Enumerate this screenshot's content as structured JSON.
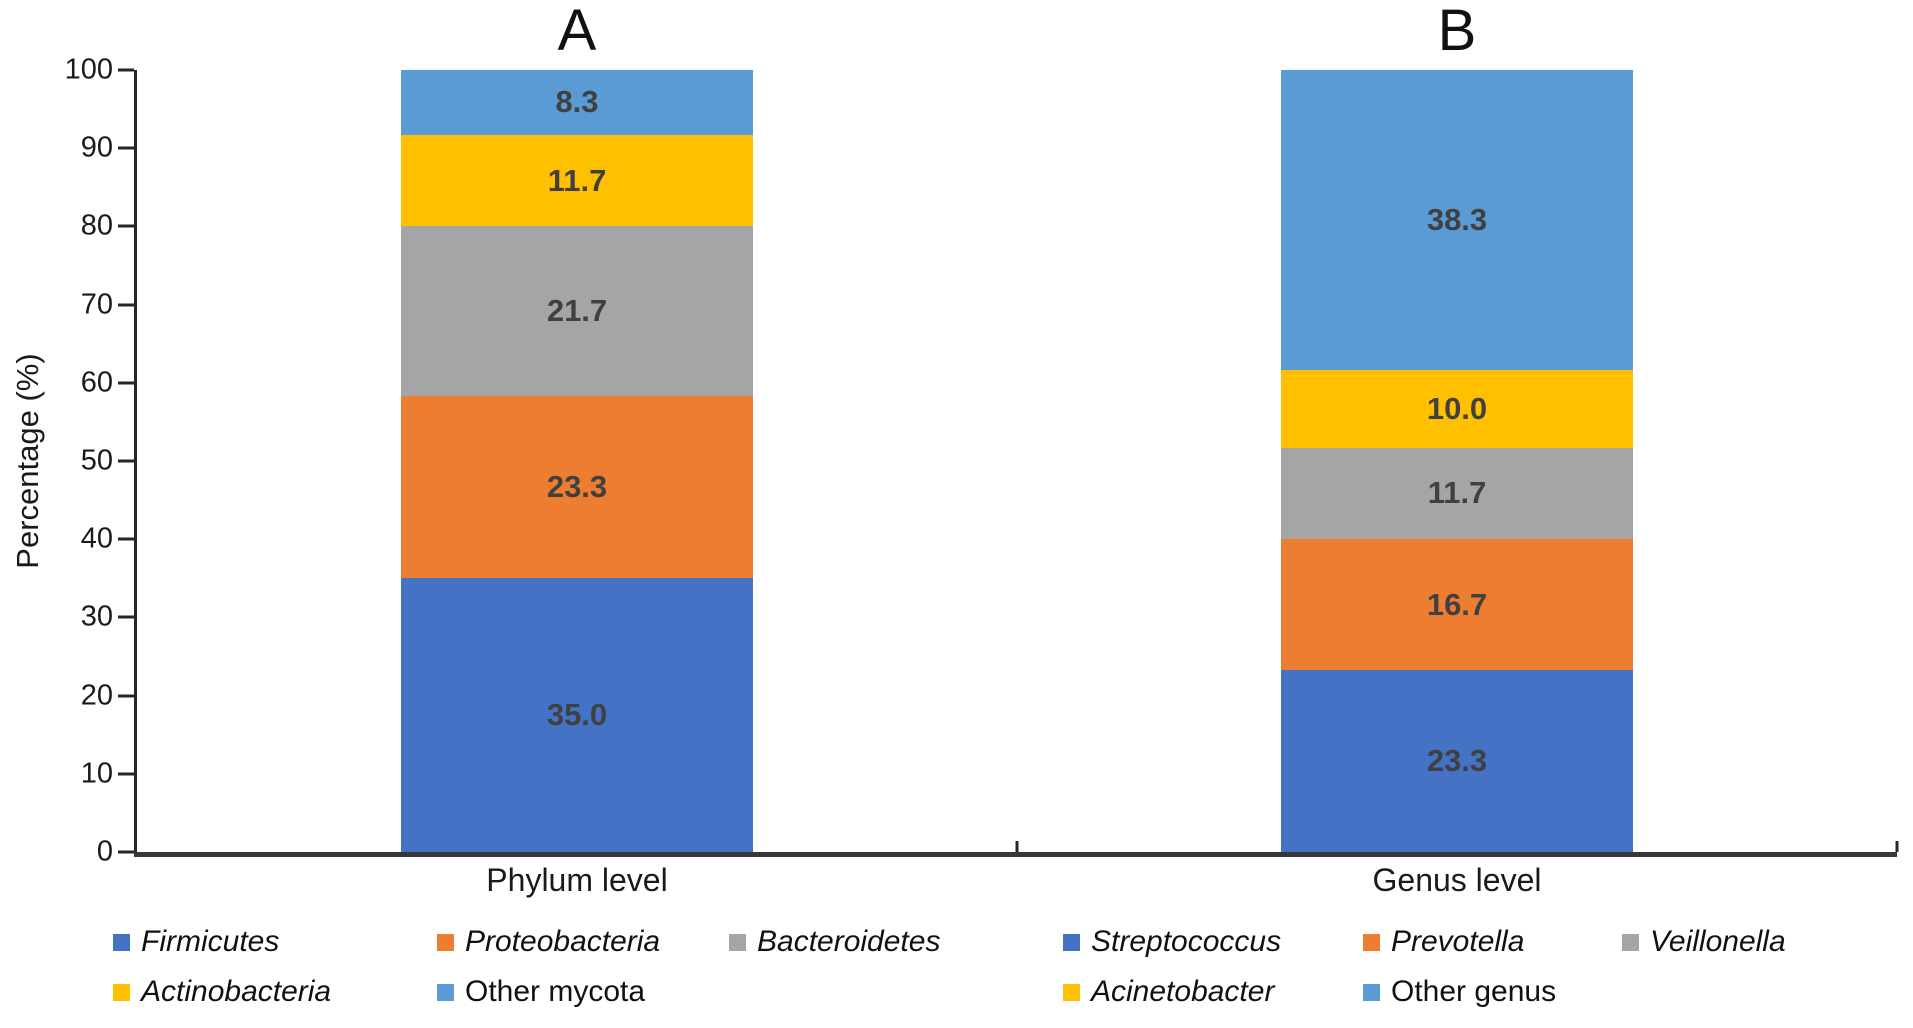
{
  "colors": {
    "blue": "#4472C4",
    "orange": "#ED7D31",
    "gray": "#A5A5A5",
    "yellow": "#FFC000",
    "light_blue": "#5B9BD5",
    "axis": "#262626",
    "value_label": "#404040"
  },
  "chart_data": {
    "type": "bar",
    "stacked": true,
    "ylabel": "Percentage (%)",
    "ylim": [
      0,
      100
    ],
    "yticks": [
      0,
      10,
      20,
      30,
      40,
      50,
      60,
      70,
      80,
      90,
      100
    ],
    "grid": false,
    "legend_position": "bottom",
    "categories": [
      "Phylum level",
      "Genus level"
    ],
    "panel_labels": [
      "A",
      "B"
    ],
    "stacks": [
      {
        "panel": "A",
        "category": "Phylum level",
        "segments": [
          {
            "name": "Firmicutes",
            "value": 35.0,
            "label": "35.0",
            "color": "#4472C4"
          },
          {
            "name": "Proteobacteria",
            "value": 23.3,
            "label": "23.3",
            "color": "#ED7D31"
          },
          {
            "name": "Bacteroidetes",
            "value": 21.7,
            "label": "21.7",
            "color": "#A5A5A5"
          },
          {
            "name": "Actinobacteria",
            "value": 11.7,
            "label": "11.7",
            "color": "#FFC000"
          },
          {
            "name": "Other mycota",
            "value": 8.3,
            "label": "8.3",
            "color": "#5B9BD5"
          }
        ]
      },
      {
        "panel": "B",
        "category": "Genus level",
        "segments": [
          {
            "name": "Streptococcus",
            "value": 23.3,
            "label": "23.3",
            "color": "#4472C4"
          },
          {
            "name": "Prevotella",
            "value": 16.7,
            "label": "16.7",
            "color": "#ED7D31"
          },
          {
            "name": "Veillonella",
            "value": 11.7,
            "label": "11.7",
            "color": "#A5A5A5"
          },
          {
            "name": "Acinetobacter",
            "value": 10.0,
            "label": "10.0",
            "color": "#FFC000"
          },
          {
            "name": "Other genus",
            "value": 38.3,
            "label": "38.3",
            "color": "#5B9BD5"
          }
        ]
      }
    ],
    "legend": {
      "entries": [
        {
          "label": "Firmicutes",
          "color": "#4472C4",
          "italic": true,
          "row": 0,
          "col": 0
        },
        {
          "label": "Proteobacteria",
          "color": "#ED7D31",
          "italic": true,
          "row": 0,
          "col": 1
        },
        {
          "label": "Bacteroidetes",
          "color": "#A5A5A5",
          "italic": true,
          "row": 0,
          "col": 2
        },
        {
          "label": "Streptococcus",
          "color": "#4472C4",
          "italic": true,
          "row": 0,
          "col": 3
        },
        {
          "label": "Prevotella",
          "color": "#ED7D31",
          "italic": true,
          "row": 0,
          "col": 4
        },
        {
          "label": "Veillonella",
          "color": "#A5A5A5",
          "italic": true,
          "row": 0,
          "col": 5
        },
        {
          "label": "Actinobacteria",
          "color": "#FFC000",
          "italic": true,
          "row": 1,
          "col": 0
        },
        {
          "label": "Other mycota",
          "color": "#5B9BD5",
          "italic": false,
          "row": 1,
          "col": 1
        },
        {
          "label": "Acinetobacter",
          "color": "#FFC000",
          "italic": true,
          "row": 1,
          "col": 3
        },
        {
          "label": "Other genus",
          "color": "#5B9BD5",
          "italic": false,
          "row": 1,
          "col": 4
        }
      ]
    }
  }
}
